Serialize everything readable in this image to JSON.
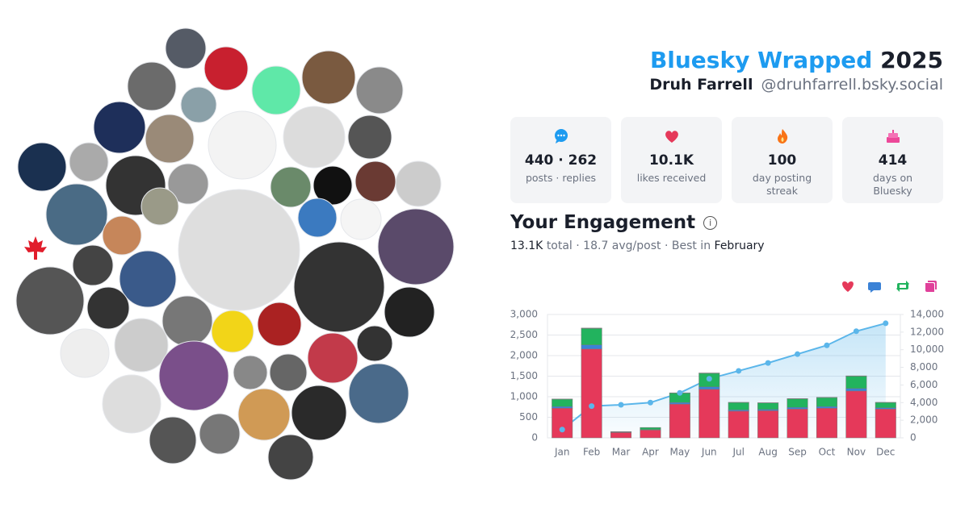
{
  "header": {
    "title": "Bluesky Wrapped",
    "year": "2025",
    "name": "Druh Farrell",
    "handle": "@druhfarrell.bsky.social"
  },
  "stats": [
    {
      "value": "440 · 262",
      "label": "posts · replies"
    },
    {
      "value": "10.1K",
      "label": "likes received"
    },
    {
      "value": "100",
      "label": "day posting streak"
    },
    {
      "value": "414",
      "label": "days on Bluesky"
    }
  ],
  "engagement": {
    "title": "Your Engagement",
    "summary": [
      "13.1K",
      "total · 18.7 avg/post · Best in",
      "February"
    ]
  },
  "chart_data": {
    "type": "bar",
    "stacked": true,
    "categories": [
      "Jan",
      "Feb",
      "Mar",
      "Apr",
      "May",
      "Jun",
      "Jul",
      "Aug",
      "Sep",
      "Oct",
      "Nov",
      "Dec"
    ],
    "series": [
      {
        "color": "#e5395a",
        "icon": "heart",
        "values": [
          720,
          2160,
          130,
          190,
          820,
          1180,
          650,
          660,
          700,
          720,
          1140,
          700
        ]
      },
      {
        "color": "#3b82d6",
        "icon": "reply",
        "values": [
          40,
          100,
          10,
          10,
          40,
          60,
          30,
          30,
          40,
          40,
          60,
          30
        ]
      },
      {
        "color": "#22b35e",
        "icon": "repost",
        "values": [
          180,
          400,
          10,
          50,
          230,
          330,
          180,
          160,
          210,
          220,
          300,
          130
        ]
      },
      {
        "color": "#e0409a",
        "icon": "quote",
        "values": [
          5,
          10,
          2,
          2,
          5,
          8,
          4,
          4,
          5,
          5,
          8,
          4
        ]
      },
      {
        "type": "area",
        "axis": "y2",
        "color": "#5bb6ea",
        "values": [
          940,
          3600,
          3750,
          4000,
          5100,
          6700,
          7600,
          8500,
          9500,
          10500,
          12100,
          13000
        ]
      }
    ],
    "ylim": [
      0,
      3000
    ],
    "yticks": [
      0,
      500,
      {
        "value": 1000,
        "label": "1,000"
      },
      {
        "value": 1500,
        "label": "1,500"
      },
      {
        "value": 2000,
        "label": "2,000"
      },
      {
        "value": 2500,
        "label": "2,500"
      },
      {
        "value": 3000,
        "label": "3,000"
      }
    ],
    "y2lim": [
      0,
      14000
    ],
    "y2ticks": [
      0,
      {
        "value": 2000,
        "label": "2,000"
      },
      {
        "value": 4000,
        "label": "4,000"
      },
      {
        "value": 6000,
        "label": "6,000"
      },
      {
        "value": 8000,
        "label": "8,000"
      },
      {
        "value": 10000,
        "label": "10,000"
      },
      {
        "value": 12000,
        "label": "12,000"
      },
      {
        "value": 14000,
        "label": "14,000"
      }
    ],
    "grid": true
  }
}
